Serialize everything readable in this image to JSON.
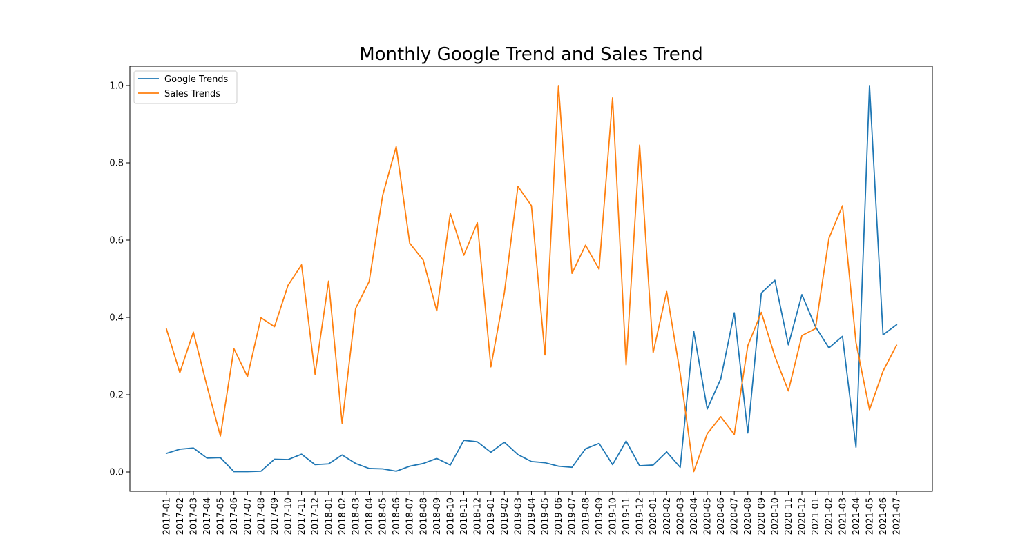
{
  "chart_data": {
    "type": "line",
    "title": "Monthly Google Trend and Sales Trend",
    "xlabel": "",
    "ylabel": "",
    "ylim": [
      -0.05,
      1.05
    ],
    "yticks": [
      "0.0",
      "0.2",
      "0.4",
      "0.6",
      "0.8",
      "1.0"
    ],
    "grid": false,
    "legend_position": "top-left",
    "categories": [
      "2017-01",
      "2017-02",
      "2017-03",
      "2017-04",
      "2017-05",
      "2017-06",
      "2017-07",
      "2017-08",
      "2017-09",
      "2017-10",
      "2017-11",
      "2017-12",
      "2018-01",
      "2018-02",
      "2018-03",
      "2018-04",
      "2018-05",
      "2018-06",
      "2018-07",
      "2018-08",
      "2018-09",
      "2018-10",
      "2018-11",
      "2018-12",
      "2019-01",
      "2019-02",
      "2019-03",
      "2019-04",
      "2019-05",
      "2019-06",
      "2019-07",
      "2019-08",
      "2019-09",
      "2019-10",
      "2019-11",
      "2019-12",
      "2020-01",
      "2020-02",
      "2020-03",
      "2020-04",
      "2020-05",
      "2020-06",
      "2020-07",
      "2020-08",
      "2020-09",
      "2020-10",
      "2020-11",
      "2020-12",
      "2021-01",
      "2021-02",
      "2021-03",
      "2021-04",
      "2021-05",
      "2021-06",
      "2021-07"
    ],
    "series": [
      {
        "name": "Google Trends",
        "color": "#1f77b4",
        "values": [
          0.048,
          0.059,
          0.062,
          0.036,
          0.037,
          0.001,
          0.001,
          0.002,
          0.033,
          0.032,
          0.046,
          0.019,
          0.021,
          0.044,
          0.022,
          0.009,
          0.008,
          0.002,
          0.015,
          0.022,
          0.035,
          0.018,
          0.082,
          0.078,
          0.051,
          0.077,
          0.045,
          0.027,
          0.024,
          0.015,
          0.012,
          0.06,
          0.074,
          0.019,
          0.08,
          0.016,
          0.018,
          0.052,
          0.012,
          0.364,
          0.163,
          0.241,
          0.412,
          0.101,
          0.463,
          0.496,
          0.329,
          0.459,
          0.376,
          0.321,
          0.351,
          0.064,
          1.0,
          0.355,
          0.381
        ]
      },
      {
        "name": "Sales Trends",
        "color": "#ff7f0e",
        "values": [
          0.371,
          0.257,
          0.362,
          0.223,
          0.093,
          0.319,
          0.247,
          0.399,
          0.376,
          0.483,
          0.536,
          0.253,
          0.494,
          0.126,
          0.423,
          0.493,
          0.716,
          0.842,
          0.592,
          0.548,
          0.417,
          0.669,
          0.561,
          0.645,
          0.272,
          0.464,
          0.739,
          0.689,
          0.303,
          1.0,
          0.514,
          0.587,
          0.525,
          0.968,
          0.277,
          0.846,
          0.309,
          0.467,
          0.255,
          0.001,
          0.099,
          0.143,
          0.097,
          0.327,
          0.413,
          0.299,
          0.21,
          0.353,
          0.371,
          0.605,
          0.689,
          0.335,
          0.161,
          0.261,
          0.328
        ]
      }
    ]
  }
}
